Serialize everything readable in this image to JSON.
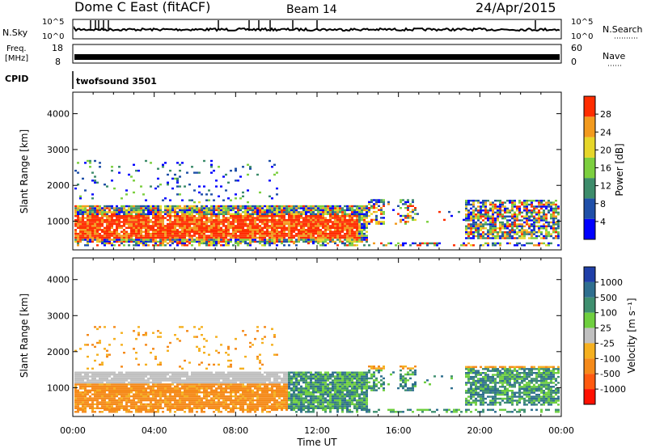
{
  "header": {
    "station": "Dome C East (fitACF)",
    "beam": "Beam 14",
    "date": "24/Apr/2015"
  },
  "strips": {
    "nsky": {
      "label": "N.Sky",
      "tick_top": "10^5",
      "tick_bottom": "10^0"
    },
    "nsearch": {
      "label": "N.Search",
      "tick_top": "10^5",
      "tick_bottom": "10^0"
    },
    "freq": {
      "label_line1": "Freq.",
      "label_line2": "[MHz]",
      "tick_top": "18",
      "tick_bottom": "8"
    },
    "nave": {
      "label": "Nave",
      "tick_top": "60",
      "tick_bottom": "0"
    },
    "cpid": {
      "label": "CPID",
      "value": "twofsound 3501"
    }
  },
  "chart_data": [
    {
      "type": "heatmap",
      "panel": "power",
      "ylabel": "Slant Range [km]",
      "yticks": [
        "1000",
        "2000",
        "3000",
        "4000"
      ],
      "ylim": [
        200,
        4600
      ],
      "colorbar_label": "Power [dB]",
      "colorbar_ticks": [
        "4",
        "8",
        "12",
        "16",
        "20",
        "24",
        "28"
      ],
      "colorbar_range": [
        0,
        32
      ],
      "colors": [
        "#0000ff",
        "#1f4fa8",
        "#3d8c6b",
        "#7ccf3f",
        "#e6d62a",
        "#f29a1e",
        "#ff2d00"
      ]
    },
    {
      "type": "heatmap",
      "panel": "velocity",
      "ylabel": "Slant Range [km]",
      "yticks": [
        "1000",
        "2000",
        "3000",
        "4000"
      ],
      "ylim": [
        200,
        4600
      ],
      "xlabel": "Time UT",
      "xticks": [
        "00:00",
        "04:00",
        "08:00",
        "12:00",
        "16:00",
        "20:00",
        "00:00"
      ],
      "xlim": [
        0,
        24
      ],
      "colorbar_label": "Velocity [m s⁻¹]",
      "colorbar_ticks": [
        "1000",
        "500",
        "100",
        "25",
        "-25",
        "-100",
        "-500",
        "-1000"
      ],
      "colors": [
        "#1f3fa8",
        "#2f6f8f",
        "#3f8f6f",
        "#6fcf3f",
        "#c0c0c0",
        "#f5b020",
        "#f58a1a",
        "#ff5a10",
        "#ff1000"
      ]
    }
  ]
}
